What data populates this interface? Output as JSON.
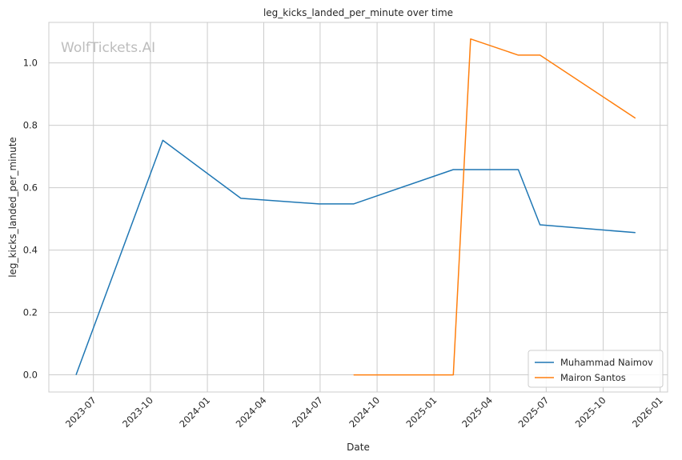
{
  "chart_data": {
    "type": "line",
    "title": "leg_kicks_landed_per_minute over time",
    "xlabel": "Date",
    "ylabel": "leg_kicks_landed_per_minute",
    "watermark": "WolfTickets.AI",
    "x_ticks": [
      "2023-07",
      "2023-10",
      "2024-01",
      "2024-04",
      "2024-07",
      "2024-10",
      "2025-01",
      "2025-04",
      "2025-07",
      "2025-10",
      "2026-01"
    ],
    "y_ticks": [
      "0.0",
      "0.2",
      "0.4",
      "0.6",
      "0.8",
      "1.0"
    ],
    "xlim": [
      "2023-04-20",
      "2026-01-13"
    ],
    "ylim": [
      -0.055,
      1.13
    ],
    "grid": true,
    "legend_position": "lower-right",
    "series": [
      {
        "name": "Muhammad Naimov",
        "color": "#1f77b4",
        "x": [
          "2023-06-03",
          "2023-10-21",
          "2024-02-24",
          "2024-06-29",
          "2024-08-24",
          "2025-02-01",
          "2025-05-17",
          "2025-06-21",
          "2025-11-22"
        ],
        "y": [
          0.0,
          0.752,
          0.566,
          0.548,
          0.548,
          0.658,
          0.658,
          0.481,
          0.456
        ]
      },
      {
        "name": "Mairon Santos",
        "color": "#ff7f0e",
        "x": [
          "2024-08-24",
          "2025-02-01",
          "2025-03-01",
          "2025-05-17",
          "2025-06-21",
          "2025-11-22"
        ],
        "y": [
          0.0,
          0.0,
          1.077,
          1.025,
          1.025,
          0.823
        ]
      }
    ]
  }
}
